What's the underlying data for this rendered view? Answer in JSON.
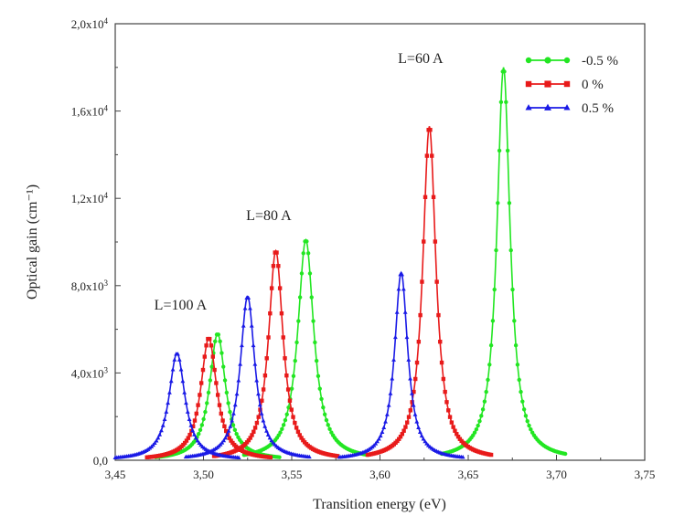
{
  "chart_data": {
    "type": "line",
    "title": "",
    "xlabel": "Transition energy (eV)",
    "ylabel": "Optical gain (cm⁻¹)",
    "xlim": [
      3.45,
      3.75
    ],
    "ylim": [
      0,
      20000
    ],
    "xticks": [
      3.45,
      3.5,
      3.55,
      3.6,
      3.65,
      3.7,
      3.75
    ],
    "xtick_labels": [
      "3,45",
      "3,50",
      "3,55",
      "3,60",
      "3,65",
      "3,70",
      "3,75"
    ],
    "yticks": [
      0,
      4000,
      8000,
      12000,
      16000,
      20000
    ],
    "ytick_labels": [
      {
        "mantissa": "0,0",
        "exp": ""
      },
      {
        "mantissa": "4,0x10",
        "exp": "3"
      },
      {
        "mantissa": "8,0x10",
        "exp": "3"
      },
      {
        "mantissa": "1,2x10",
        "exp": "4"
      },
      {
        "mantissa": "1,6x10",
        "exp": "4"
      },
      {
        "mantissa": "2,0x10",
        "exp": "4"
      }
    ],
    "grid": false,
    "legend_position": "top-right",
    "series": [
      {
        "name": "-0.5 %",
        "color": "#22e622",
        "marker": "circle",
        "peaks": [
          {
            "center": 3.508,
            "height": 5800,
            "width": 0.0055
          },
          {
            "center": 3.558,
            "height": 10100,
            "width": 0.0055
          },
          {
            "center": 3.67,
            "height": 18000,
            "width": 0.0045
          }
        ]
      },
      {
        "name": "0 %",
        "color": "#e81a1a",
        "marker": "square",
        "peaks": [
          {
            "center": 3.503,
            "height": 5600,
            "width": 0.0055
          },
          {
            "center": 3.541,
            "height": 9600,
            "width": 0.005
          },
          {
            "center": 3.628,
            "height": 15300,
            "width": 0.0045
          }
        ]
      },
      {
        "name": "0.5 %",
        "color": "#1a1ae6",
        "marker": "triangle",
        "peaks": [
          {
            "center": 3.485,
            "height": 4900,
            "width": 0.0055
          },
          {
            "center": 3.525,
            "height": 7500,
            "width": 0.005
          },
          {
            "center": 3.612,
            "height": 8600,
            "width": 0.0045
          }
        ]
      }
    ],
    "annotations": [
      {
        "text": "L=100 A",
        "x": 3.487,
        "y": 6900
      },
      {
        "text": "L=80 A",
        "x": 3.537,
        "y": 11000
      },
      {
        "text": "L=60 A",
        "x": 3.623,
        "y": 18200
      }
    ]
  }
}
